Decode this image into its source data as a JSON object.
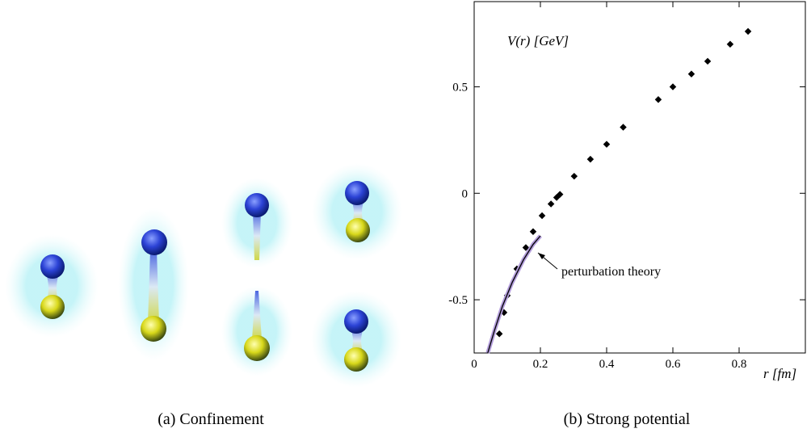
{
  "chart_data": {
    "type": "scatter",
    "y_label": "V(r) [GeV]",
    "x_label": "r [fm]",
    "xlim": [
      0,
      1.0
    ],
    "ylim": [
      -0.75,
      0.9
    ],
    "xticks": [
      0,
      0.2,
      0.4,
      0.6,
      0.8
    ],
    "yticks": [
      -0.5,
      0,
      0.5
    ],
    "grid": false,
    "series": [
      {
        "color": "#000000",
        "x": [
          0.076,
          0.09,
          0.1,
          0.129,
          0.156,
          0.178,
          0.205,
          0.232,
          0.249,
          0.259,
          0.302,
          0.351,
          0.4,
          0.45,
          0.556,
          0.6,
          0.656,
          0.705,
          0.773,
          0.827
        ],
        "y": [
          -0.66,
          -0.56,
          -0.48,
          -0.355,
          -0.255,
          -0.18,
          -0.105,
          -0.05,
          -0.02,
          -0.005,
          0.08,
          0.16,
          0.23,
          0.31,
          0.44,
          0.5,
          0.56,
          0.62,
          0.7,
          0.76
        ]
      },
      {
        "name": "perturbation theory",
        "color": "#000000",
        "band_color": "#b39ddb",
        "x": [
          0.041,
          0.061,
          0.085,
          0.115,
          0.149,
          0.178,
          0.2
        ],
        "y": [
          -0.75,
          -0.646,
          -0.532,
          -0.418,
          -0.312,
          -0.24,
          -0.2
        ]
      }
    ]
  },
  "figure": {
    "caption_a": "(a) Confinement",
    "caption_b": "(b) Strong potential"
  }
}
